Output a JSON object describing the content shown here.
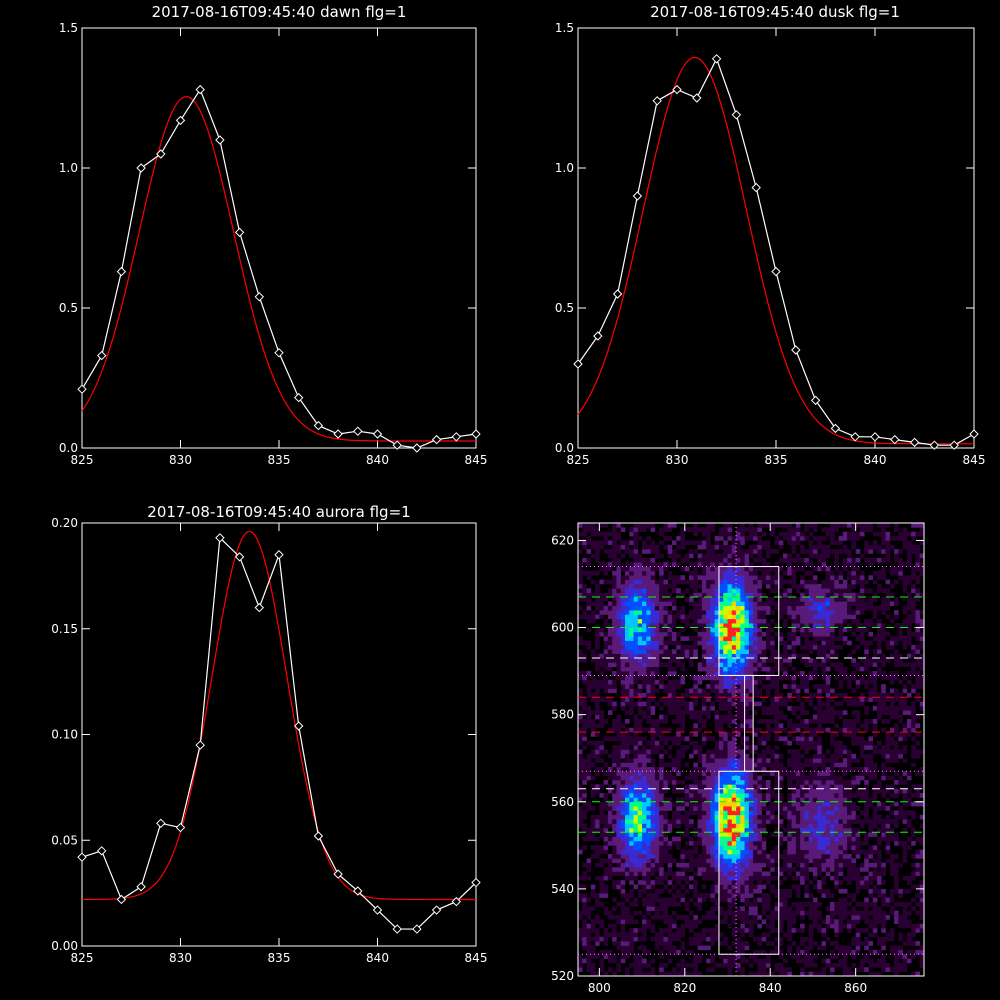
{
  "chart_data": [
    {
      "id": "dawn",
      "type": "line",
      "title": "2017-08-16T09:45:40 dawn flg=1",
      "xlim": [
        825,
        845
      ],
      "ylim": [
        0,
        1.5
      ],
      "xticks": [
        "825",
        "830",
        "835",
        "840",
        "845"
      ],
      "yticks": [
        "0.0",
        "0.5",
        "1.0",
        "1.5"
      ],
      "xtick_values": [
        825,
        830,
        835,
        840,
        845
      ],
      "ytick_values": [
        0,
        0.5,
        1.0,
        1.5
      ],
      "series": [
        {
          "color": "#ffffff",
          "markers": "diamond",
          "x": [
            825,
            826,
            827,
            828,
            829,
            830,
            831,
            832,
            833,
            834,
            835,
            836,
            837,
            838,
            839,
            840,
            841,
            842,
            843,
            844,
            845
          ],
          "y": [
            0.21,
            0.33,
            0.63,
            1.0,
            1.05,
            1.17,
            1.28,
            1.1,
            0.77,
            0.54,
            0.34,
            0.18,
            0.08,
            0.05,
            0.06,
            0.05,
            0.01,
            0.0,
            0.03,
            0.04,
            0.05
          ]
        },
        {
          "color": "#ff0000",
          "fit": {
            "amp": 1.23,
            "mu": 830.3,
            "sigma": 2.4,
            "base": 0.025
          }
        }
      ]
    },
    {
      "id": "dusk",
      "type": "line",
      "title": "2017-08-16T09:45:40 dusk flg=1",
      "xlim": [
        825,
        845
      ],
      "ylim": [
        0,
        1.5
      ],
      "xticks": [
        "825",
        "830",
        "835",
        "840",
        "845"
      ],
      "yticks": [
        "0.0",
        "0.5",
        "1.0",
        "1.5"
      ],
      "xtick_values": [
        825,
        830,
        835,
        840,
        845
      ],
      "ytick_values": [
        0,
        0.5,
        1.0,
        1.5
      ],
      "series": [
        {
          "color": "#ffffff",
          "markers": "diamond",
          "x": [
            825,
            826,
            827,
            828,
            829,
            830,
            831,
            832,
            833,
            834,
            835,
            836,
            837,
            838,
            839,
            840,
            841,
            842,
            843,
            844,
            845
          ],
          "y": [
            0.3,
            0.4,
            0.55,
            0.9,
            1.24,
            1.28,
            1.25,
            1.39,
            1.19,
            0.93,
            0.63,
            0.35,
            0.17,
            0.07,
            0.04,
            0.04,
            0.03,
            0.02,
            0.01,
            0.01,
            0.05
          ]
        },
        {
          "color": "#ff0000",
          "fit": {
            "amp": 1.38,
            "mu": 830.9,
            "sigma": 2.6,
            "base": 0.015
          }
        }
      ]
    },
    {
      "id": "aurora",
      "type": "line",
      "title": "2017-08-16T09:45:40 aurora flg=1",
      "xlim": [
        825,
        845
      ],
      "ylim": [
        0,
        0.2
      ],
      "xticks": [
        "825",
        "830",
        "835",
        "840",
        "845"
      ],
      "yticks": [
        "0.00",
        "0.05",
        "0.10",
        "0.15",
        "0.20"
      ],
      "xtick_values": [
        825,
        830,
        835,
        840,
        845
      ],
      "ytick_values": [
        0,
        0.05,
        0.1,
        0.15,
        0.2
      ],
      "series": [
        {
          "color": "#ffffff",
          "markers": "diamond",
          "x": [
            825,
            826,
            827,
            828,
            829,
            830,
            831,
            832,
            833,
            834,
            835,
            836,
            837,
            838,
            839,
            840,
            841,
            842,
            843,
            844,
            845
          ],
          "y": [
            0.042,
            0.045,
            0.022,
            0.028,
            0.058,
            0.056,
            0.095,
            0.193,
            0.184,
            0.16,
            0.185,
            0.104,
            0.052,
            0.034,
            0.026,
            0.017,
            0.008,
            0.008,
            0.017,
            0.021,
            0.03
          ]
        },
        {
          "color": "#ff0000",
          "fit": {
            "amp": 0.174,
            "mu": 833.5,
            "sigma": 1.9,
            "base": 0.022
          }
        }
      ]
    },
    {
      "id": "image",
      "type": "heatmap",
      "title": "",
      "xlim": [
        795,
        876
      ],
      "ylim": [
        520,
        624
      ],
      "xticks": [
        "800",
        "820",
        "840",
        "860"
      ],
      "yticks": [
        "520",
        "540",
        "560",
        "580",
        "600",
        "620"
      ],
      "xtick_values": [
        800,
        820,
        840,
        860
      ],
      "ytick_values": [
        520,
        540,
        560,
        580,
        600,
        620
      ],
      "colormap": [
        "#2a0033",
        "#5a1a7a",
        "#3a2ad6",
        "#0050ff",
        "#00c8ff",
        "#00ff90",
        "#c8ff00",
        "#ffcc00",
        "#ff2020"
      ],
      "blobs": [
        {
          "x": 809,
          "y": 601,
          "sx": 3.0,
          "sy": 6,
          "amp": 0.55
        },
        {
          "x": 831,
          "y": 600,
          "sx": 3.0,
          "sy": 7,
          "amp": 0.95
        },
        {
          "x": 852,
          "y": 604,
          "sx": 3.5,
          "sy": 3,
          "amp": 0.25
        },
        {
          "x": 809,
          "y": 556,
          "sx": 3.0,
          "sy": 6,
          "amp": 0.6
        },
        {
          "x": 831,
          "y": 556,
          "sx": 3.0,
          "sy": 7,
          "amp": 1.0
        },
        {
          "x": 852,
          "y": 555,
          "sx": 4.0,
          "sy": 6,
          "amp": 0.22
        }
      ],
      "boxes": [
        {
          "x0": 828,
          "x1": 842,
          "y0": 589,
          "y1": 614
        },
        {
          "x0": 834,
          "x1": 836,
          "y0": 567,
          "y1": 589
        },
        {
          "x0": 828,
          "x1": 842,
          "y0": 525,
          "y1": 567
        }
      ],
      "vline_dotted": 832,
      "hlines": [
        {
          "y": 614,
          "color": "#ff80ff",
          "style": "dotted"
        },
        {
          "y": 607,
          "color": "#00ff00",
          "style": "dashed"
        },
        {
          "y": 600,
          "color": "#00ff00",
          "style": "dashed"
        },
        {
          "y": 593,
          "color": "#ffffff",
          "style": "dashed"
        },
        {
          "y": 589,
          "color": "#ff80ff",
          "style": "dotted"
        },
        {
          "y": 584,
          "color": "#ff0000",
          "style": "dashed"
        },
        {
          "y": 576,
          "color": "#ff0000",
          "style": "dashed"
        },
        {
          "y": 567,
          "color": "#ff80ff",
          "style": "dotted"
        },
        {
          "y": 563,
          "color": "#ffffff",
          "style": "dashed"
        },
        {
          "y": 560,
          "color": "#00ff00",
          "style": "dashed"
        },
        {
          "y": 553,
          "color": "#00ff00",
          "style": "dashed"
        },
        {
          "y": 525,
          "color": "#ff80ff",
          "style": "dotted"
        }
      ]
    }
  ]
}
